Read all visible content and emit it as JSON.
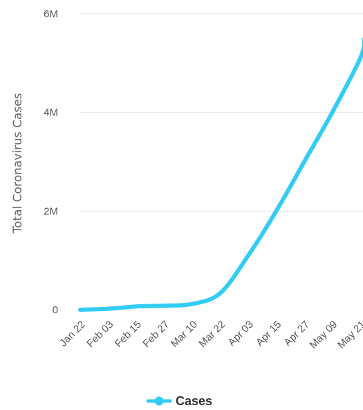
{
  "chart_data": {
    "type": "line",
    "ylabel": "Total Coronavirus Cases",
    "xlabel": "",
    "ylim": [
      0,
      6000000
    ],
    "y_ticks": [
      {
        "value": 0,
        "label": "0"
      },
      {
        "value": 2000000,
        "label": "2M"
      },
      {
        "value": 4000000,
        "label": "4M"
      },
      {
        "value": 6000000,
        "label": "6M"
      }
    ],
    "categories": [
      "Jan 22",
      "Feb 03",
      "Feb 15",
      "Feb 27",
      "Mar 10",
      "Mar 22",
      "Apr 03",
      "Apr 15",
      "Apr 27",
      "May 09",
      "May 21"
    ],
    "grid": true,
    "legend_position": "bottom",
    "series": [
      {
        "name": "Cases",
        "color": "#33ccf3",
        "values": [
          580,
          20000,
          67000,
          83000,
          118000,
          337000,
          1100000,
          2000000,
          3000000,
          4000000,
          5100000
        ],
        "last_value": 5500000
      }
    ]
  }
}
